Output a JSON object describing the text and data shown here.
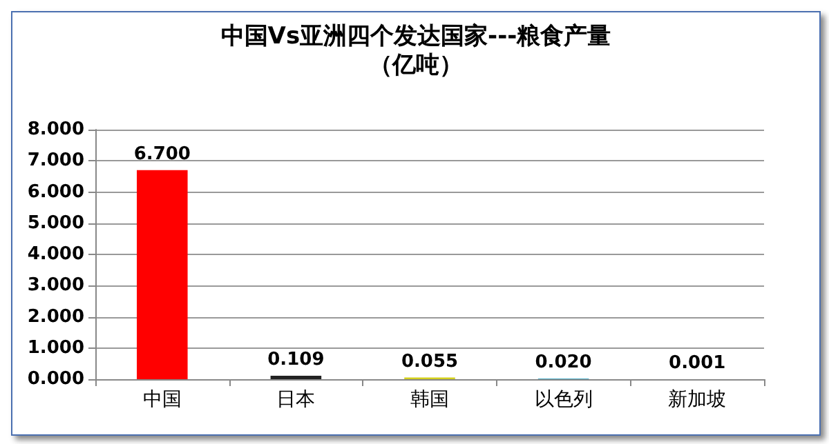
{
  "chart_data": {
    "type": "bar",
    "title": "中国Vs亚洲四个发达国家---粮食产量",
    "subtitle": "（亿吨）",
    "categories": [
      "中国",
      "日本",
      "韩国",
      "以色列",
      "新加坡"
    ],
    "values": [
      6.7,
      0.109,
      0.055,
      0.02,
      0.001
    ],
    "colors": [
      "#ff0000",
      "#222222",
      "#d4d01c",
      "#4bacc6",
      "#9b6fc0"
    ],
    "value_labels": [
      "6.700",
      "0.109",
      "0.055",
      "0.020",
      "0.001"
    ],
    "ylim": [
      0,
      8
    ],
    "yticks": [
      {
        "value": 0,
        "label": "0.000"
      },
      {
        "value": 1,
        "label": "1.000"
      },
      {
        "value": 2,
        "label": "2.000"
      },
      {
        "value": 3,
        "label": "3.000"
      },
      {
        "value": 4,
        "label": "4.000"
      },
      {
        "value": 5,
        "label": "5.000"
      },
      {
        "value": 6,
        "label": "6.000"
      },
      {
        "value": 7,
        "label": "7.000"
      },
      {
        "value": 8,
        "label": "8.000"
      }
    ],
    "grid": "y"
  }
}
